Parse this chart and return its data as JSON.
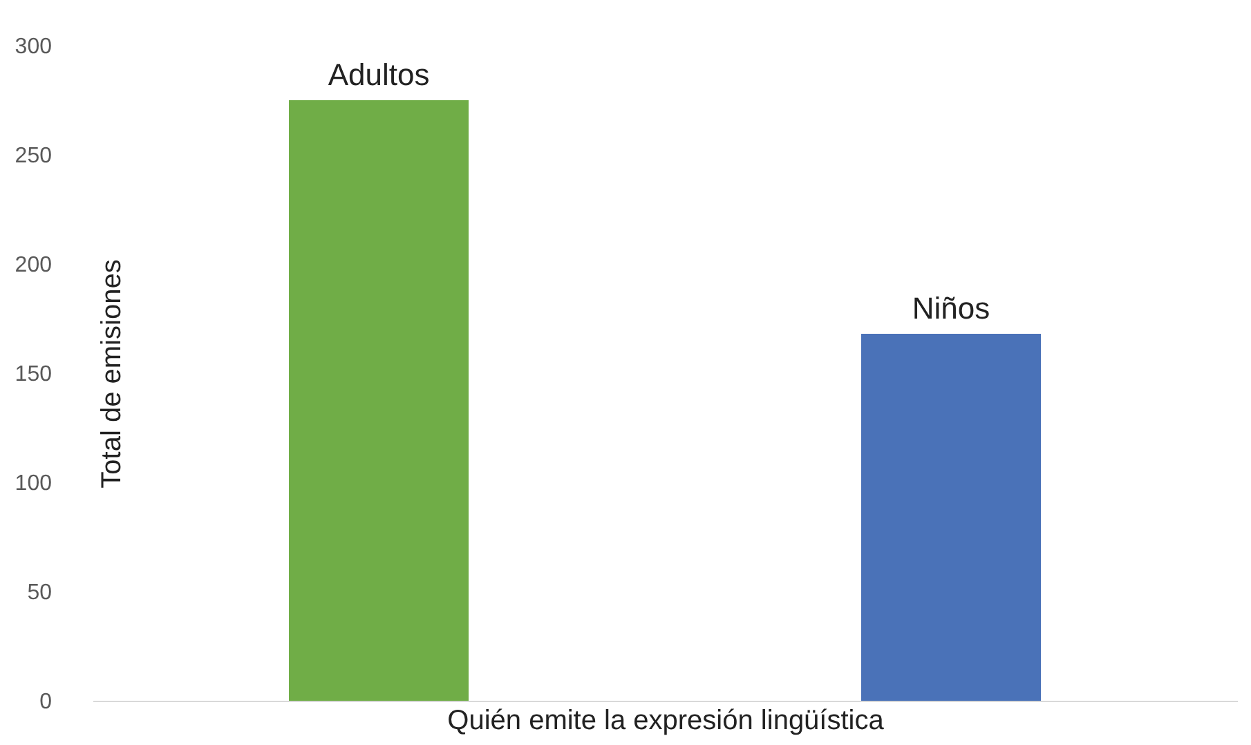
{
  "chart_data": {
    "type": "bar",
    "categories": [
      "Adultos",
      "Niños"
    ],
    "values": [
      275,
      168
    ],
    "colors": [
      "#70ad47",
      "#4a72b8"
    ],
    "xlabel": "Quién emite la expresión lingüística",
    "ylabel": "Total de emisiones",
    "ylim": [
      0,
      300
    ],
    "yticks": [
      0,
      50,
      100,
      150,
      200,
      250,
      300
    ],
    "grid": false
  }
}
